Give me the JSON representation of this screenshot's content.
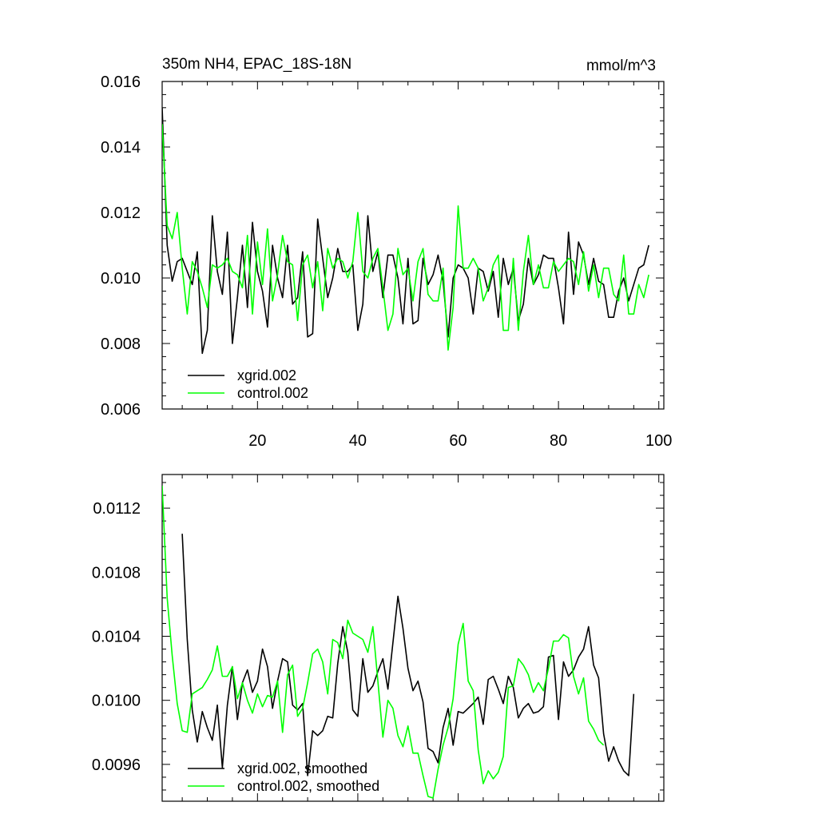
{
  "chart_data": [
    {
      "type": "line",
      "title": "350m NH4, EPAC_18S-18N",
      "units": "mmol/m^3",
      "xlabel": "",
      "ylabel": "",
      "xlim": [
        1,
        101
      ],
      "ylim": [
        0.006,
        0.016
      ],
      "yticks": [
        "0.006",
        "0.008",
        "0.010",
        "0.012",
        "0.014",
        "0.016"
      ],
      "xticks": [
        "20",
        "40",
        "60",
        "80",
        "100"
      ],
      "grid": false,
      "legend_position": "bottom-left",
      "series": [
        {
          "name": "xgrid.002",
          "color": "#000000",
          "x_start": 1,
          "values": [
            0.0152,
            0.011,
            0.0099,
            0.0105,
            0.0106,
            0.0102,
            0.0098,
            0.0108,
            0.0077,
            0.0084,
            0.0119,
            0.0102,
            0.0095,
            0.0114,
            0.008,
            0.0094,
            0.011,
            0.0091,
            0.0117,
            0.0102,
            0.0096,
            0.0085,
            0.011,
            0.01,
            0.0094,
            0.011,
            0.0092,
            0.0094,
            0.0108,
            0.0082,
            0.0083,
            0.0118,
            0.0106,
            0.0094,
            0.01,
            0.0109,
            0.0102,
            0.0102,
            0.0104,
            0.0084,
            0.0092,
            0.0119,
            0.0102,
            0.0108,
            0.0094,
            0.0107,
            0.0107,
            0.01,
            0.0086,
            0.0106,
            0.0086,
            0.0087,
            0.0106,
            0.0098,
            0.0101,
            0.0107,
            0.0099,
            0.0082,
            0.01,
            0.0104,
            0.0103,
            0.01,
            0.0089,
            0.0103,
            0.0102,
            0.0096,
            0.0102,
            0.0088,
            0.0106,
            0.0098,
            0.0103,
            0.0087,
            0.0092,
            0.0106,
            0.0098,
            0.0101,
            0.0107,
            0.0106,
            0.0106,
            0.0097,
            0.0086,
            0.0114,
            0.0095,
            0.0111,
            0.0107,
            0.0098,
            0.0106,
            0.0099,
            0.0098,
            0.0088,
            0.0088,
            0.0096,
            0.01,
            0.0093,
            0.0098,
            0.0103,
            0.0104,
            0.011
          ]
        },
        {
          "name": "control.002",
          "color": "#00ff00",
          "x_start": 1,
          "values": [
            0.0147,
            0.0116,
            0.0112,
            0.012,
            0.0103,
            0.0089,
            0.0105,
            0.0102,
            0.0097,
            0.0091,
            0.0104,
            0.0103,
            0.0104,
            0.0106,
            0.0102,
            0.0101,
            0.0097,
            0.0113,
            0.0089,
            0.0111,
            0.0098,
            0.0115,
            0.0093,
            0.0101,
            0.0113,
            0.0105,
            0.0104,
            0.0087,
            0.0104,
            0.0107,
            0.0097,
            0.0105,
            0.009,
            0.0109,
            0.0103,
            0.0106,
            0.0105,
            0.01,
            0.0105,
            0.012,
            0.0102,
            0.01,
            0.0106,
            0.0109,
            0.0097,
            0.0084,
            0.0089,
            0.0109,
            0.0101,
            0.0103,
            0.0093,
            0.0105,
            0.0109,
            0.0095,
            0.0093,
            0.0093,
            0.0103,
            0.0078,
            0.0091,
            0.0122,
            0.0103,
            0.0103,
            0.0106,
            0.0103,
            0.0093,
            0.0097,
            0.0104,
            0.0107,
            0.0084,
            0.0084,
            0.0106,
            0.0084,
            0.0102,
            0.0113,
            0.0098,
            0.0104,
            0.0097,
            0.0097,
            0.0105,
            0.0102,
            0.0104,
            0.0106,
            0.0105,
            0.0098,
            0.0108,
            0.0096,
            0.0104,
            0.0094,
            0.0103,
            0.0103,
            0.0095,
            0.0093,
            0.0107,
            0.0089,
            0.0089,
            0.0098,
            0.0094,
            0.0101
          ]
        }
      ]
    },
    {
      "type": "line",
      "title": "",
      "xlabel": "",
      "ylabel": "",
      "xlim": [
        1,
        101
      ],
      "ylim": [
        0.00937,
        0.01141
      ],
      "yticks": [
        "0.0096",
        "0.0100",
        "0.0104",
        "0.0108",
        "0.0112"
      ],
      "xticks": [],
      "grid": false,
      "legend_position": "bottom-left",
      "series": [
        {
          "name": "xgrid.002, smoothed",
          "color": "#000000",
          "x_start": 5,
          "values": [
            0.01104,
            0.01038,
            0.00994,
            0.00974,
            0.00993,
            0.00983,
            0.00975,
            0.00997,
            0.00958,
            0.00997,
            0.01021,
            0.00988,
            0.01011,
            0.01019,
            0.01005,
            0.01012,
            0.01032,
            0.01021,
            0.00995,
            0.01012,
            0.01026,
            0.01024,
            0.00997,
            0.00994,
            0.00998,
            0.00953,
            0.00981,
            0.00978,
            0.00981,
            0.0099,
            0.00989,
            0.01023,
            0.01046,
            0.0103,
            0.00994,
            0.0099,
            0.01026,
            0.01005,
            0.01009,
            0.01018,
            0.01026,
            0.01007,
            0.01036,
            0.01065,
            0.01045,
            0.0102,
            0.01006,
            0.01012,
            0.00999,
            0.0097,
            0.00968,
            0.00961,
            0.00983,
            0.00995,
            0.00972,
            0.00993,
            0.00992,
            0.00995,
            0.00998,
            0.01002,
            0.00985,
            0.01013,
            0.01015,
            0.01007,
            0.00998,
            0.01015,
            0.01008,
            0.00989,
            0.00995,
            0.00998,
            0.00992,
            0.00993,
            0.00996,
            0.01027,
            0.01028,
            0.00988,
            0.01024,
            0.01015,
            0.01019,
            0.01027,
            0.01032,
            0.01046,
            0.01022,
            0.01014,
            0.00979,
            0.00962,
            0.00971,
            0.00962,
            0.00956,
            0.00953,
            0.01004
          ]
        },
        {
          "name": "control.002, smoothed",
          "color": "#00ff00",
          "x_start": 1,
          "values": [
            0.01134,
            0.01064,
            0.01028,
            0.00998,
            0.00981,
            0.0098,
            0.01004,
            0.01006,
            0.01008,
            0.01013,
            0.01019,
            0.01034,
            0.01015,
            0.01015,
            0.01021,
            0.01001,
            0.01011,
            0.01,
            0.00992,
            0.01004,
            0.00996,
            0.01003,
            0.01002,
            0.01012,
            0.0098,
            0.01016,
            0.01022,
            0.0099,
            0.00995,
            0.01011,
            0.01029,
            0.01032,
            0.01024,
            0.01004,
            0.01038,
            0.01036,
            0.01026,
            0.0105,
            0.01042,
            0.0104,
            0.01038,
            0.0103,
            0.01046,
            0.01012,
            0.00977,
            0.01,
            0.00995,
            0.00978,
            0.00971,
            0.00984,
            0.00967,
            0.00967,
            0.00953,
            0.0094,
            0.00939,
            0.00957,
            0.00972,
            0.00983,
            0.01001,
            0.01035,
            0.01048,
            0.01012,
            0.01006,
            0.00969,
            0.00948,
            0.00956,
            0.00951,
            0.00955,
            0.00965,
            0.01008,
            0.01009,
            0.01026,
            0.01022,
            0.01016,
            0.01005,
            0.01011,
            0.01006,
            0.0102,
            0.01037,
            0.01037,
            0.01041,
            0.01039,
            0.01015,
            0.01004,
            0.01014,
            0.00987,
            0.00982,
            0.00975,
            0.00972
          ]
        }
      ]
    }
  ]
}
